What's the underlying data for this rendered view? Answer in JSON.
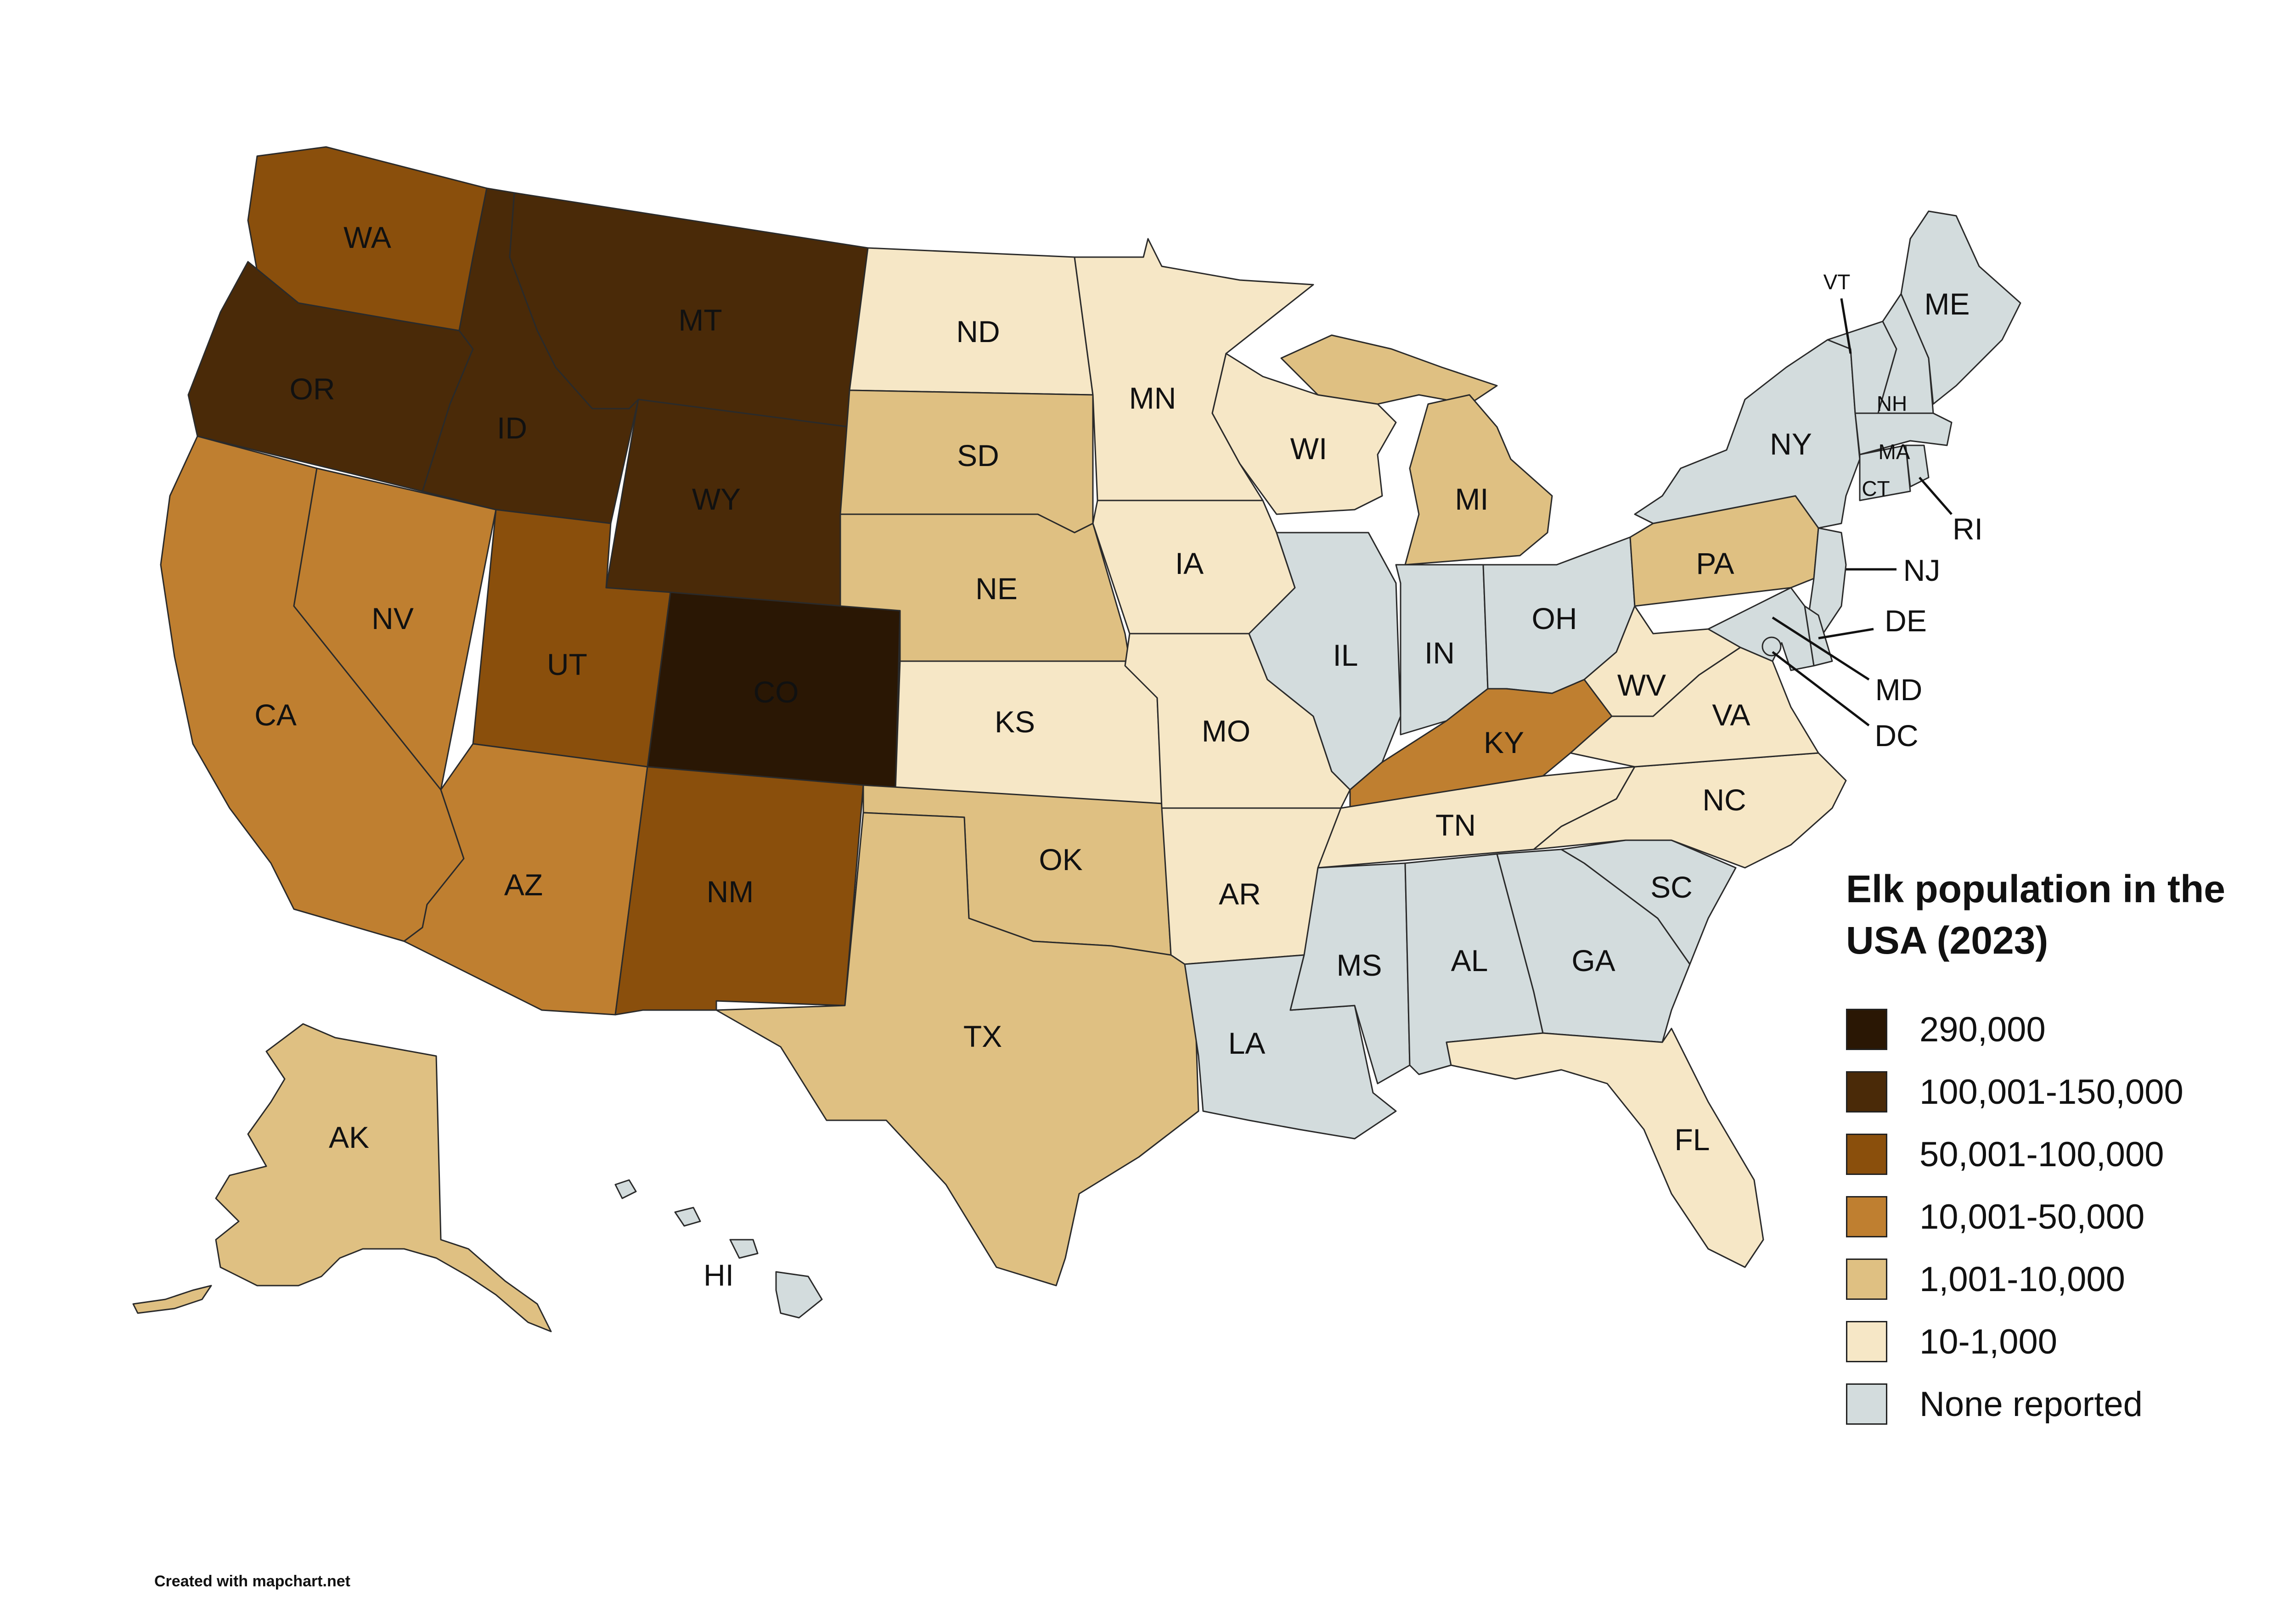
{
  "title": "Elk population in the USA (2023)",
  "credit": "Created with mapchart.net",
  "colors": {
    "c290k": "#2a1704",
    "c100k": "#4a2a08",
    "c50k": "#8a4f0c",
    "c10k": "#bf7f30",
    "c1k": "#dfc082",
    "c10": "#f6e7c6",
    "none": "#d3dcdd"
  },
  "legend": [
    {
      "label": "290,000",
      "color": "#2a1704"
    },
    {
      "label": "100,001-150,000",
      "color": "#4a2a08"
    },
    {
      "label": "50,001-100,000",
      "color": "#8a4f0c"
    },
    {
      "label": "10,001-50,000",
      "color": "#bf7f30"
    },
    {
      "label": "1,001-10,000",
      "color": "#dfc082"
    },
    {
      "label": "10-1,000",
      "color": "#f6e7c6"
    },
    {
      "label": "None reported",
      "color": "#d3dcdd"
    }
  ],
  "states": {
    "WA": {
      "label": "WA",
      "category": "50,001-100,000"
    },
    "OR": {
      "label": "OR",
      "category": "100,001-150,000"
    },
    "CA": {
      "label": "CA",
      "category": "10,001-50,000"
    },
    "NV": {
      "label": "NV",
      "category": "10,001-50,000"
    },
    "ID": {
      "label": "ID",
      "category": "100,001-150,000"
    },
    "MT": {
      "label": "MT",
      "category": "100,001-150,000"
    },
    "WY": {
      "label": "WY",
      "category": "100,001-150,000"
    },
    "UT": {
      "label": "UT",
      "category": "50,001-100,000"
    },
    "AZ": {
      "label": "AZ",
      "category": "10,001-50,000"
    },
    "CO": {
      "label": "CO",
      "category": "290,000"
    },
    "NM": {
      "label": "NM",
      "category": "50,001-100,000"
    },
    "ND": {
      "label": "ND",
      "category": "10-1,000"
    },
    "SD": {
      "label": "SD",
      "category": "1,001-10,000"
    },
    "NE": {
      "label": "NE",
      "category": "1,001-10,000"
    },
    "KS": {
      "label": "KS",
      "category": "10-1,000"
    },
    "OK": {
      "label": "OK",
      "category": "1,001-10,000"
    },
    "TX": {
      "label": "TX",
      "category": "1,001-10,000"
    },
    "MN": {
      "label": "MN",
      "category": "10-1,000"
    },
    "IA": {
      "label": "IA",
      "category": "10-1,000"
    },
    "MO": {
      "label": "MO",
      "category": "10-1,000"
    },
    "AR": {
      "label": "AR",
      "category": "10-1,000"
    },
    "LA": {
      "label": "LA",
      "category": "None reported"
    },
    "WI": {
      "label": "WI",
      "category": "10-1,000"
    },
    "IL": {
      "label": "IL",
      "category": "None reported"
    },
    "MI": {
      "label": "MI",
      "category": "1,001-10,000"
    },
    "IN": {
      "label": "IN",
      "category": "None reported"
    },
    "OH": {
      "label": "OH",
      "category": "None reported"
    },
    "KY": {
      "label": "KY",
      "category": "10,001-50,000"
    },
    "TN": {
      "label": "TN",
      "category": "10-1,000"
    },
    "MS": {
      "label": "MS",
      "category": "None reported"
    },
    "AL": {
      "label": "AL",
      "category": "None reported"
    },
    "GA": {
      "label": "GA",
      "category": "None reported"
    },
    "FL": {
      "label": "FL",
      "category": "10-1,000"
    },
    "SC": {
      "label": "SC",
      "category": "None reported"
    },
    "NC": {
      "label": "NC",
      "category": "10-1,000"
    },
    "VA": {
      "label": "VA",
      "category": "10-1,000"
    },
    "WV": {
      "label": "WV",
      "category": "10-1,000"
    },
    "PA": {
      "label": "PA",
      "category": "1,001-10,000"
    },
    "NY": {
      "label": "NY",
      "category": "None reported"
    },
    "VT": {
      "label": "VT",
      "category": "None reported"
    },
    "NH": {
      "label": "NH",
      "category": "None reported"
    },
    "ME": {
      "label": "ME",
      "category": "None reported"
    },
    "MA": {
      "label": "MA",
      "category": "None reported"
    },
    "RI": {
      "label": "RI",
      "category": "None reported"
    },
    "CT": {
      "label": "CT",
      "category": "None reported"
    },
    "NJ": {
      "label": "NJ",
      "category": "None reported"
    },
    "DE": {
      "label": "DE",
      "category": "None reported"
    },
    "MD": {
      "label": "MD",
      "category": "None reported"
    },
    "DC": {
      "label": "DC",
      "category": "None reported"
    },
    "AK": {
      "label": "AK",
      "category": "1,001-10,000"
    },
    "HI": {
      "label": "HI",
      "category": "None reported"
    }
  }
}
